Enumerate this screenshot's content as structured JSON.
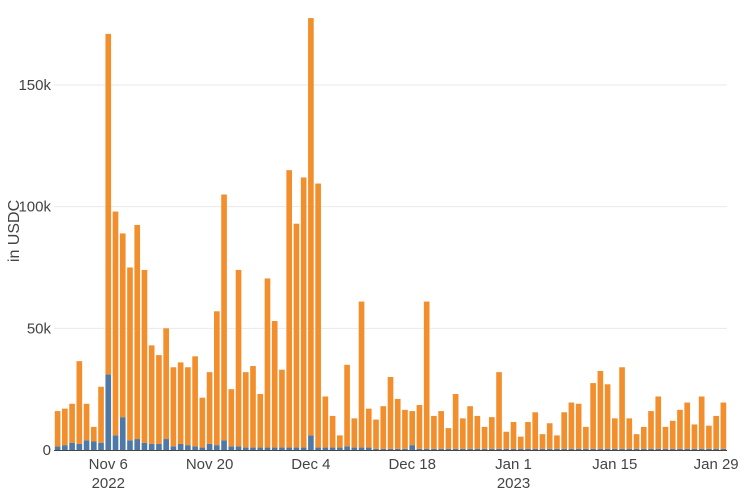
{
  "chart_data": {
    "type": "bar",
    "stacked": true,
    "ylabel": "in USDC",
    "ylim": [
      0,
      180000
    ],
    "yticks": [
      {
        "value": 0,
        "label": "0"
      },
      {
        "value": 50000,
        "label": "50k"
      },
      {
        "value": 100000,
        "label": "100k"
      },
      {
        "value": 150000,
        "label": "150k"
      }
    ],
    "xticks": [
      {
        "index": 7,
        "label": "Nov 6",
        "sublabel": "2022"
      },
      {
        "index": 21,
        "label": "Nov 20",
        "sublabel": ""
      },
      {
        "index": 35,
        "label": "Dec 4",
        "sublabel": ""
      },
      {
        "index": 49,
        "label": "Dec 18",
        "sublabel": ""
      },
      {
        "index": 63,
        "label": "Jan 1",
        "sublabel": "2023"
      },
      {
        "index": 77,
        "label": "Jan 15",
        "sublabel": ""
      },
      {
        "index": 91,
        "label": "Jan 29",
        "sublabel": ""
      }
    ],
    "grid": true,
    "legend": "none",
    "series": [
      {
        "color": "#4e79a7",
        "values": [
          1500,
          2000,
          3000,
          2500,
          4000,
          3500,
          3000,
          31000,
          6000,
          13500,
          4000,
          4500,
          3000,
          2500,
          2500,
          4500,
          1500,
          2500,
          2000,
          1500,
          1000,
          2500,
          2000,
          4000,
          1500,
          1500,
          1000,
          1000,
          1000,
          1000,
          1000,
          1000,
          1000,
          1000,
          1000,
          6000,
          1000,
          1000,
          1000,
          1000,
          1500,
          1000,
          1000,
          1000,
          500,
          500,
          500,
          500,
          500,
          2000,
          500,
          500,
          500,
          500,
          500,
          500,
          500,
          500,
          500,
          500,
          500,
          500,
          500,
          500,
          500,
          500,
          500,
          500,
          500,
          500,
          500,
          500,
          500,
          500,
          500,
          500,
          500,
          500,
          500,
          500,
          500,
          500,
          500,
          500,
          500,
          500,
          500,
          500,
          500,
          500,
          500,
          500,
          500
        ]
      },
      {
        "color": "#f28e2b",
        "values": [
          14500,
          15000,
          16000,
          34000,
          15000,
          6000,
          23000,
          140000,
          92000,
          75500,
          71000,
          88000,
          71000,
          40500,
          36500,
          45500,
          32500,
          33500,
          32000,
          37000,
          20500,
          29500,
          55000,
          101000,
          23500,
          72500,
          31000,
          33500,
          22000,
          69500,
          52000,
          32000,
          114000,
          92000,
          111000,
          171500,
          108500,
          21000,
          13000,
          5000,
          33500,
          12000,
          60000,
          16000,
          12000,
          17500,
          29500,
          20500,
          16000,
          14000,
          18000,
          60500,
          13500,
          15500,
          8500,
          22500,
          12500,
          17500,
          13500,
          9000,
          13000,
          31500,
          7000,
          11000,
          5000,
          11000,
          15000,
          6000,
          10500,
          5500,
          15000,
          19000,
          18500,
          9000,
          27000,
          32000,
          26500,
          12500,
          33500,
          12500,
          6000,
          9000,
          15500,
          21500,
          9000,
          11500,
          16000,
          19000,
          10000,
          21500,
          9500,
          13500,
          19000
        ]
      }
    ]
  }
}
